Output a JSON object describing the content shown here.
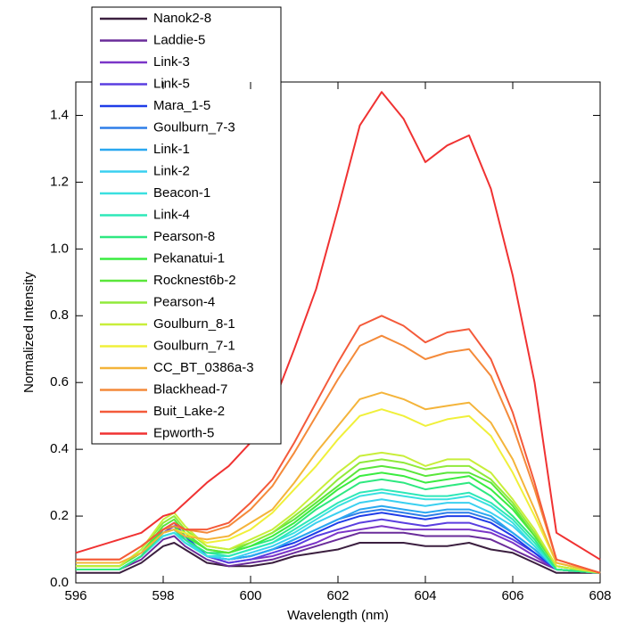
{
  "chart_data": {
    "type": "line",
    "xlabel": "Wavelength (nm)",
    "ylabel": "Normalized Intensity",
    "x": [
      596,
      597,
      597.5,
      598,
      598.25,
      598.5,
      599,
      599.5,
      600,
      600.5,
      601,
      601.5,
      602,
      602.5,
      603,
      603.5,
      604,
      604.5,
      605,
      605.5,
      606,
      606.5,
      607,
      608
    ],
    "xlim": [
      596,
      608
    ],
    "xticks": [
      596,
      598,
      600,
      602,
      604,
      606,
      608
    ],
    "ylim": [
      0,
      1.5
    ],
    "yticks": [
      {
        "value": 0,
        "label": "0.0"
      },
      0.2,
      0.4,
      0.6,
      0.8,
      {
        "value": 1,
        "label": "1.0"
      },
      1.2,
      1.4
    ],
    "legend": "upper left",
    "series": [
      {
        "name": "Nanok2-8",
        "color": "#3b1f3f",
        "values": [
          0.03,
          0.03,
          0.06,
          0.11,
          0.12,
          0.1,
          0.06,
          0.05,
          0.05,
          0.06,
          0.08,
          0.09,
          0.1,
          0.12,
          0.12,
          0.12,
          0.11,
          0.11,
          0.12,
          0.1,
          0.09,
          0.06,
          0.03,
          0.03
        ]
      },
      {
        "name": "Laddie-5",
        "color": "#6a2c9a",
        "values": [
          0.04,
          0.04,
          0.07,
          0.13,
          0.14,
          0.11,
          0.07,
          0.05,
          0.06,
          0.07,
          0.09,
          0.11,
          0.13,
          0.15,
          0.15,
          0.15,
          0.14,
          0.14,
          0.14,
          0.13,
          0.1,
          0.07,
          0.04,
          0.03
        ]
      },
      {
        "name": "Link-3",
        "color": "#7b35c8",
        "values": [
          0.04,
          0.04,
          0.08,
          0.15,
          0.17,
          0.13,
          0.08,
          0.06,
          0.07,
          0.08,
          0.1,
          0.12,
          0.15,
          0.16,
          0.17,
          0.16,
          0.16,
          0.16,
          0.16,
          0.15,
          0.12,
          0.08,
          0.04,
          0.03
        ]
      },
      {
        "name": "Link-5",
        "color": "#5a3ee0",
        "values": [
          0.04,
          0.04,
          0.08,
          0.16,
          0.18,
          0.14,
          0.08,
          0.06,
          0.07,
          0.09,
          0.11,
          0.14,
          0.16,
          0.18,
          0.19,
          0.18,
          0.17,
          0.18,
          0.18,
          0.16,
          0.13,
          0.09,
          0.04,
          0.03
        ]
      },
      {
        "name": "Mara_1-5",
        "color": "#1f3ce8",
        "values": [
          0.04,
          0.04,
          0.08,
          0.16,
          0.17,
          0.14,
          0.08,
          0.07,
          0.08,
          0.1,
          0.12,
          0.15,
          0.18,
          0.2,
          0.21,
          0.2,
          0.19,
          0.2,
          0.2,
          0.18,
          0.14,
          0.09,
          0.04,
          0.03
        ]
      },
      {
        "name": "Goulburn_7-3",
        "color": "#2f7ee8",
        "values": [
          0.04,
          0.04,
          0.08,
          0.15,
          0.16,
          0.13,
          0.08,
          0.07,
          0.08,
          0.1,
          0.13,
          0.16,
          0.19,
          0.21,
          0.22,
          0.21,
          0.2,
          0.21,
          0.21,
          0.19,
          0.15,
          0.1,
          0.04,
          0.03
        ]
      },
      {
        "name": "Link-1",
        "color": "#2aa8f0",
        "values": [
          0.04,
          0.04,
          0.08,
          0.14,
          0.15,
          0.12,
          0.08,
          0.07,
          0.08,
          0.1,
          0.13,
          0.16,
          0.19,
          0.22,
          0.23,
          0.22,
          0.21,
          0.22,
          0.22,
          0.2,
          0.15,
          0.1,
          0.04,
          0.03
        ]
      },
      {
        "name": "Link-2",
        "color": "#3ad0f0",
        "values": [
          0.04,
          0.04,
          0.08,
          0.14,
          0.15,
          0.13,
          0.08,
          0.07,
          0.09,
          0.11,
          0.14,
          0.18,
          0.21,
          0.24,
          0.25,
          0.24,
          0.23,
          0.24,
          0.24,
          0.21,
          0.17,
          0.11,
          0.04,
          0.03
        ]
      },
      {
        "name": "Beacon-1",
        "color": "#3ae0e0",
        "values": [
          0.04,
          0.04,
          0.08,
          0.14,
          0.15,
          0.12,
          0.08,
          0.08,
          0.1,
          0.12,
          0.15,
          0.19,
          0.23,
          0.26,
          0.27,
          0.26,
          0.25,
          0.25,
          0.26,
          0.23,
          0.18,
          0.11,
          0.04,
          0.03
        ]
      },
      {
        "name": "Link-4",
        "color": "#2ee8b8",
        "values": [
          0.04,
          0.04,
          0.08,
          0.15,
          0.16,
          0.13,
          0.09,
          0.08,
          0.1,
          0.12,
          0.16,
          0.2,
          0.24,
          0.27,
          0.28,
          0.27,
          0.26,
          0.26,
          0.27,
          0.24,
          0.19,
          0.12,
          0.04,
          0.03
        ]
      },
      {
        "name": "Pearson-8",
        "color": "#2ee880",
        "values": [
          0.04,
          0.04,
          0.08,
          0.15,
          0.16,
          0.13,
          0.09,
          0.09,
          0.11,
          0.13,
          0.17,
          0.22,
          0.26,
          0.3,
          0.31,
          0.3,
          0.28,
          0.29,
          0.3,
          0.26,
          0.2,
          0.13,
          0.04,
          0.03
        ]
      },
      {
        "name": "Pekanatui-1",
        "color": "#3aec40",
        "values": [
          0.05,
          0.05,
          0.09,
          0.16,
          0.17,
          0.14,
          0.1,
          0.09,
          0.11,
          0.14,
          0.18,
          0.23,
          0.28,
          0.32,
          0.33,
          0.32,
          0.3,
          0.31,
          0.32,
          0.28,
          0.22,
          0.14,
          0.05,
          0.03
        ]
      },
      {
        "name": "Rocknest6b-2",
        "color": "#5ae63a",
        "values": [
          0.05,
          0.05,
          0.09,
          0.17,
          0.19,
          0.15,
          0.1,
          0.09,
          0.12,
          0.15,
          0.19,
          0.24,
          0.29,
          0.34,
          0.35,
          0.34,
          0.32,
          0.33,
          0.33,
          0.3,
          0.23,
          0.14,
          0.05,
          0.03
        ]
      },
      {
        "name": "Pearson-4",
        "color": "#90ea3a",
        "values": [
          0.05,
          0.05,
          0.1,
          0.18,
          0.2,
          0.16,
          0.11,
          0.1,
          0.12,
          0.15,
          0.2,
          0.25,
          0.31,
          0.36,
          0.37,
          0.36,
          0.34,
          0.35,
          0.35,
          0.31,
          0.24,
          0.15,
          0.05,
          0.03
        ]
      },
      {
        "name": "Goulburn_8-1",
        "color": "#c8ee3a",
        "values": [
          0.05,
          0.05,
          0.1,
          0.19,
          0.21,
          0.17,
          0.11,
          0.1,
          0.13,
          0.16,
          0.21,
          0.27,
          0.33,
          0.38,
          0.39,
          0.38,
          0.35,
          0.37,
          0.37,
          0.33,
          0.25,
          0.16,
          0.05,
          0.03
        ]
      },
      {
        "name": "Goulburn_7-1",
        "color": "#f0f03a",
        "values": [
          0.06,
          0.06,
          0.09,
          0.15,
          0.16,
          0.15,
          0.12,
          0.13,
          0.16,
          0.21,
          0.28,
          0.35,
          0.43,
          0.5,
          0.52,
          0.5,
          0.47,
          0.49,
          0.5,
          0.44,
          0.33,
          0.2,
          0.06,
          0.03
        ]
      },
      {
        "name": "CC_BT_0386a-3",
        "color": "#f4b43a",
        "values": [
          0.06,
          0.06,
          0.09,
          0.15,
          0.16,
          0.14,
          0.13,
          0.14,
          0.18,
          0.22,
          0.3,
          0.39,
          0.47,
          0.55,
          0.57,
          0.55,
          0.52,
          0.53,
          0.54,
          0.48,
          0.37,
          0.22,
          0.06,
          0.03
        ]
      },
      {
        "name": "Blackhead-7",
        "color": "#f48a3a",
        "values": [
          0.07,
          0.07,
          0.11,
          0.16,
          0.17,
          0.16,
          0.15,
          0.17,
          0.22,
          0.29,
          0.39,
          0.5,
          0.61,
          0.71,
          0.74,
          0.71,
          0.67,
          0.69,
          0.7,
          0.62,
          0.47,
          0.28,
          0.07,
          0.03
        ]
      },
      {
        "name": "Buit_Lake-2",
        "color": "#f45a3a",
        "values": [
          0.07,
          0.07,
          0.11,
          0.16,
          0.18,
          0.16,
          0.16,
          0.18,
          0.24,
          0.31,
          0.42,
          0.54,
          0.66,
          0.77,
          0.8,
          0.77,
          0.72,
          0.75,
          0.76,
          0.67,
          0.51,
          0.3,
          0.07,
          0.03
        ]
      },
      {
        "name": "Epworth-5",
        "color": "#f03232",
        "values": [
          0.09,
          0.13,
          0.15,
          0.2,
          0.21,
          0.24,
          0.3,
          0.35,
          0.42,
          0.53,
          0.7,
          0.88,
          1.12,
          1.37,
          1.47,
          1.39,
          1.26,
          1.31,
          1.34,
          1.18,
          0.92,
          0.6,
          0.15,
          0.07
        ]
      }
    ]
  }
}
